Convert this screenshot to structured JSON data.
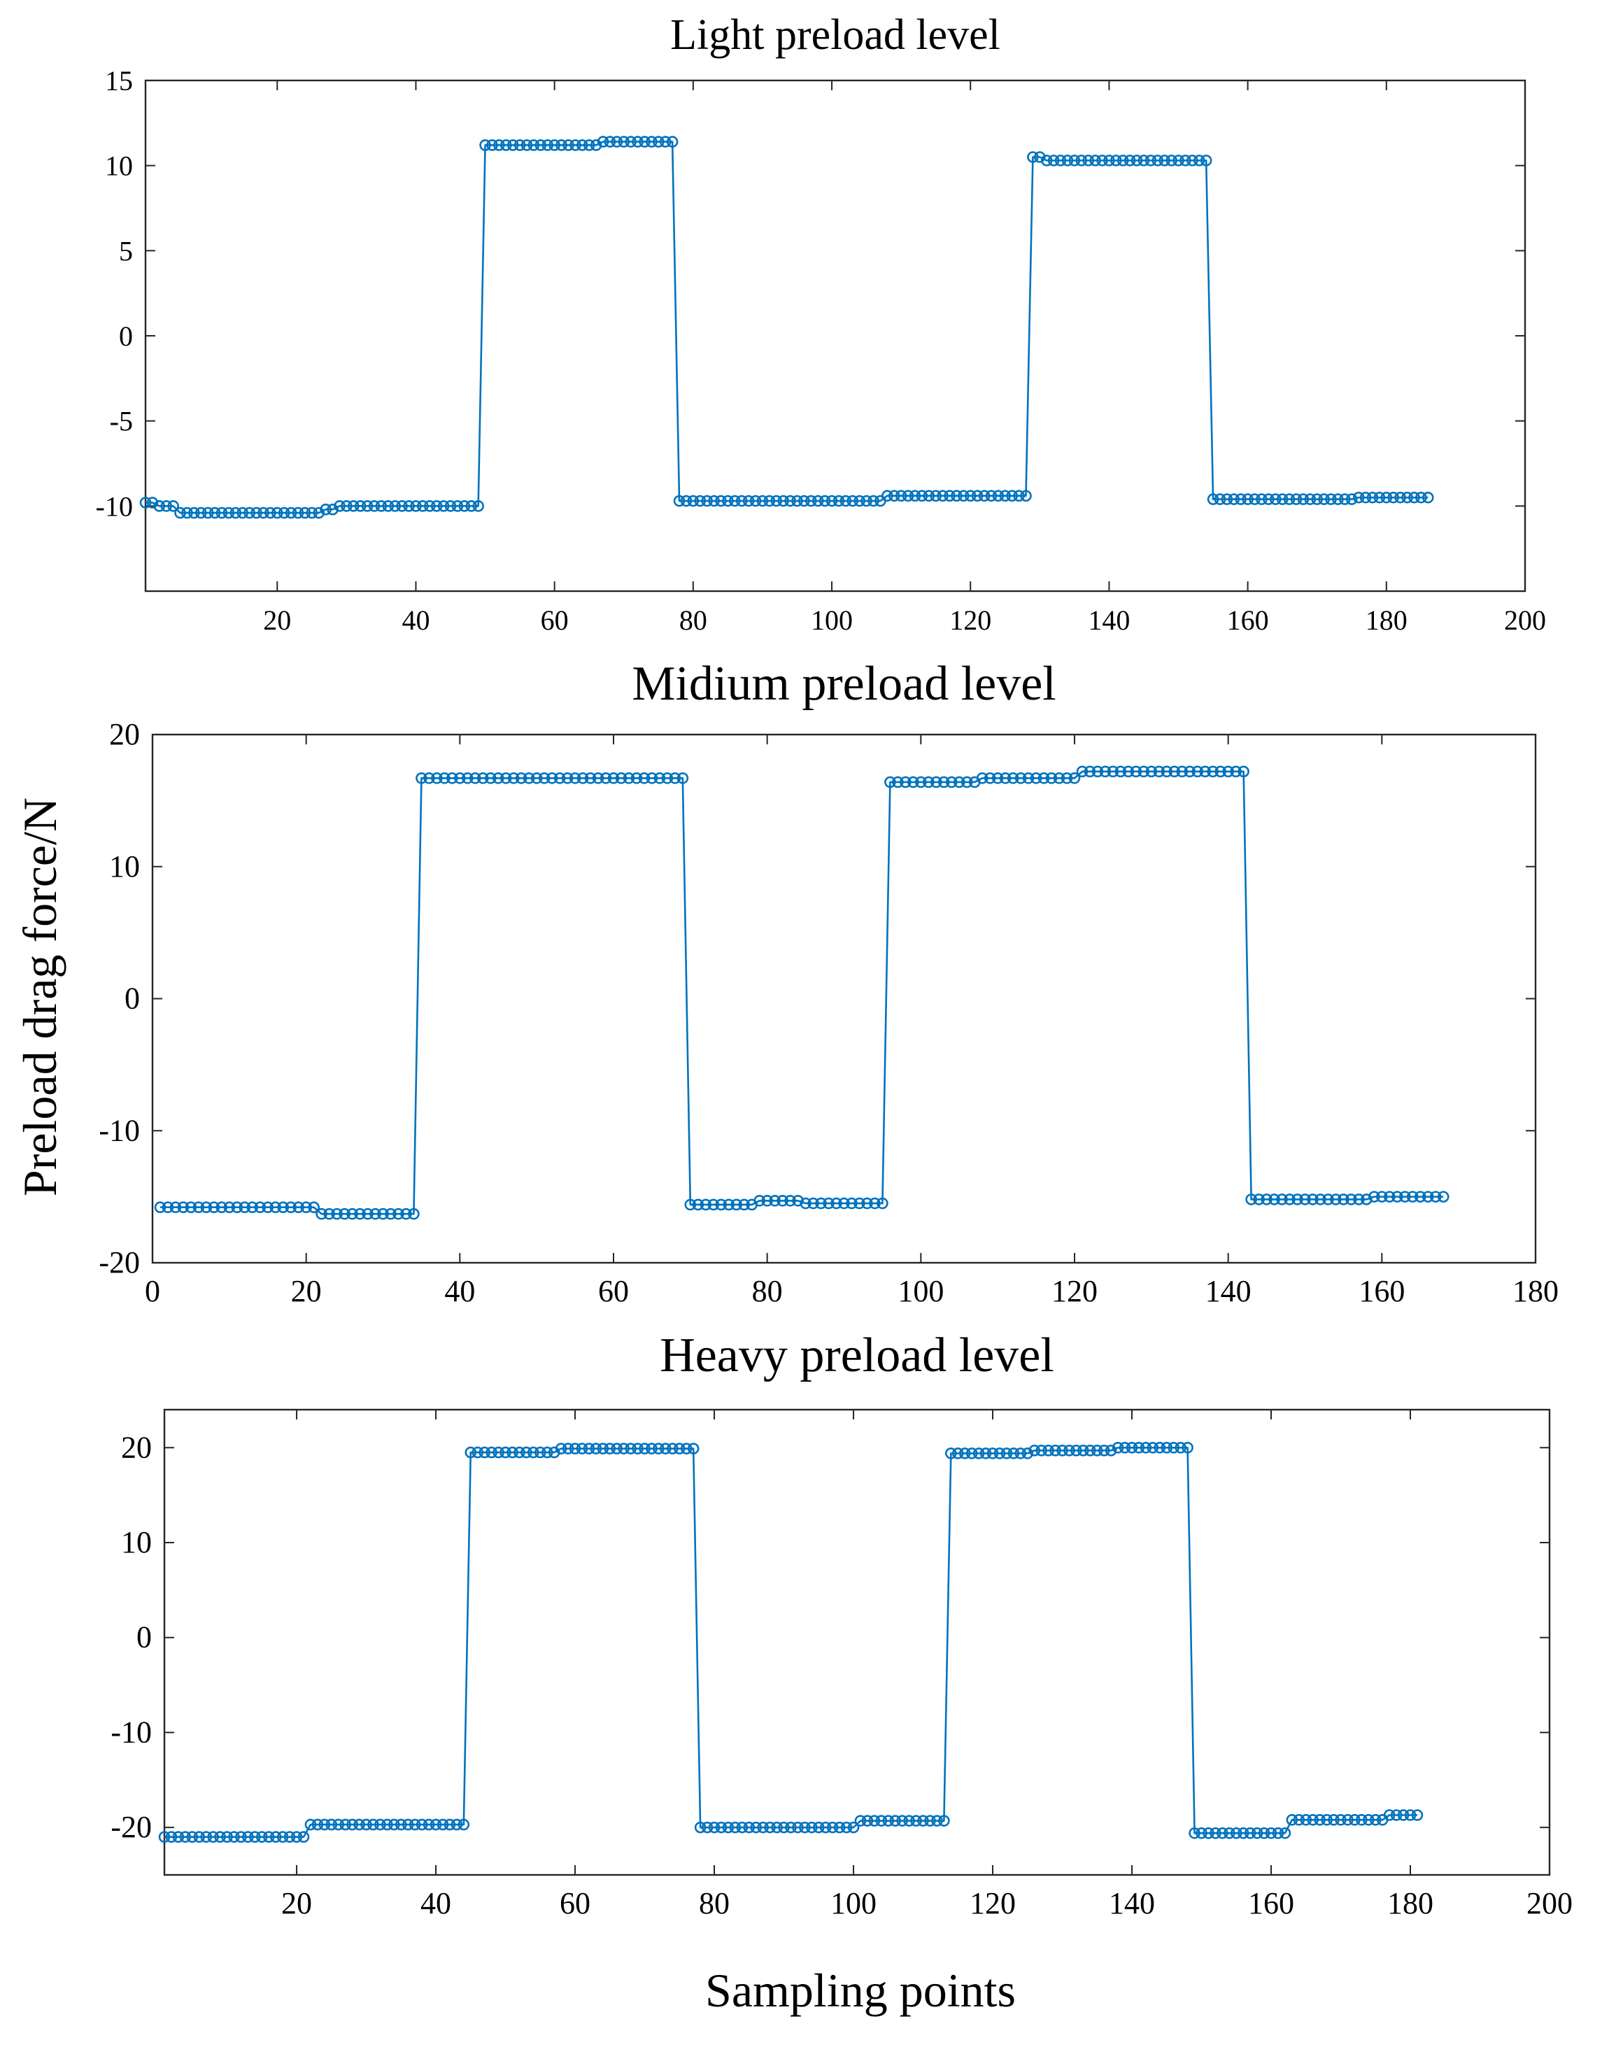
{
  "figure": {
    "ylabel": "Preload drag force/N",
    "xlabel": "Sampling points"
  },
  "chart_data": [
    {
      "type": "line",
      "title": "Light preload level",
      "xlabel": "",
      "ylabel": "",
      "xlim": [
        1,
        200
      ],
      "ylim": [
        -15,
        15
      ],
      "xticks": [
        20,
        40,
        60,
        80,
        100,
        120,
        140,
        160,
        180,
        200
      ],
      "yticks": [
        10,
        5,
        0,
        -5,
        -10,
        15
      ],
      "ytick_labels": [
        "15",
        "10",
        "5",
        "0",
        "-5",
        "-10"
      ],
      "ytick_values": [
        15,
        10,
        5,
        0,
        -5,
        -10
      ],
      "color": "#0072BD",
      "markers": "circle",
      "segments": [
        {
          "start": 1,
          "end": 2,
          "value": -9.8
        },
        {
          "start": 3,
          "end": 5,
          "value": -10.0
        },
        {
          "start": 6,
          "end": 26,
          "value": -10.4
        },
        {
          "start": 27,
          "end": 28,
          "value": -10.2
        },
        {
          "start": 29,
          "end": 49,
          "value": -10.0
        },
        {
          "start": 50,
          "end": 66,
          "value": 11.2
        },
        {
          "start": 67,
          "end": 77,
          "value": 11.4
        },
        {
          "start": 78,
          "end": 107,
          "value": -9.7
        },
        {
          "start": 108,
          "end": 128,
          "value": -9.4
        },
        {
          "start": 129,
          "end": 130,
          "value": 10.5
        },
        {
          "start": 131,
          "end": 154,
          "value": 10.3
        },
        {
          "start": 155,
          "end": 175,
          "value": -9.6
        },
        {
          "start": 176,
          "end": 186,
          "value": -9.5
        }
      ]
    },
    {
      "type": "line",
      "title": "Midium preload level",
      "xlabel": "",
      "ylabel": "",
      "xlim": [
        0,
        180
      ],
      "ylim": [
        -20,
        20
      ],
      "xticks": [
        0,
        20,
        40,
        60,
        80,
        100,
        120,
        140,
        160,
        180
      ],
      "ytick_labels": [
        "20",
        "10",
        "0",
        "-10",
        "-20"
      ],
      "ytick_values": [
        20,
        10,
        0,
        -10,
        -20
      ],
      "color": "#0072BD",
      "markers": "circle",
      "segments": [
        {
          "start": 1,
          "end": 21,
          "value": -15.8
        },
        {
          "start": 22,
          "end": 34,
          "value": -16.3
        },
        {
          "start": 35,
          "end": 69,
          "value": 16.7
        },
        {
          "start": 70,
          "end": 78,
          "value": -15.6
        },
        {
          "start": 79,
          "end": 84,
          "value": -15.3
        },
        {
          "start": 85,
          "end": 95,
          "value": -15.5
        },
        {
          "start": 96,
          "end": 107,
          "value": 16.4
        },
        {
          "start": 108,
          "end": 120,
          "value": 16.7
        },
        {
          "start": 121,
          "end": 142,
          "value": 17.2
        },
        {
          "start": 143,
          "end": 158,
          "value": -15.2
        },
        {
          "start": 159,
          "end": 168,
          "value": -15.0
        }
      ]
    },
    {
      "type": "line",
      "title": "Heavy preload level",
      "xlabel": "Sampling points",
      "ylabel": "",
      "xlim": [
        1,
        200
      ],
      "ylim": [
        -25,
        24
      ],
      "xticks": [
        20,
        40,
        60,
        80,
        100,
        120,
        140,
        160,
        180,
        200
      ],
      "ytick_labels": [
        "20",
        "10",
        "0",
        "-10",
        "-20"
      ],
      "ytick_values": [
        20,
        10,
        0,
        -10,
        -20
      ],
      "color": "#0072BD",
      "markers": "circle",
      "segments": [
        {
          "start": 1,
          "end": 21,
          "value": -21.0
        },
        {
          "start": 22,
          "end": 44,
          "value": -19.7
        },
        {
          "start": 45,
          "end": 57,
          "value": 19.5
        },
        {
          "start": 58,
          "end": 77,
          "value": 19.9
        },
        {
          "start": 78,
          "end": 100,
          "value": -20.0
        },
        {
          "start": 101,
          "end": 113,
          "value": -19.3
        },
        {
          "start": 114,
          "end": 125,
          "value": 19.4
        },
        {
          "start": 126,
          "end": 137,
          "value": 19.7
        },
        {
          "start": 138,
          "end": 148,
          "value": 20.0
        },
        {
          "start": 149,
          "end": 162,
          "value": -20.6
        },
        {
          "start": 163,
          "end": 176,
          "value": -19.2
        },
        {
          "start": 177,
          "end": 181,
          "value": -18.7
        }
      ]
    }
  ]
}
